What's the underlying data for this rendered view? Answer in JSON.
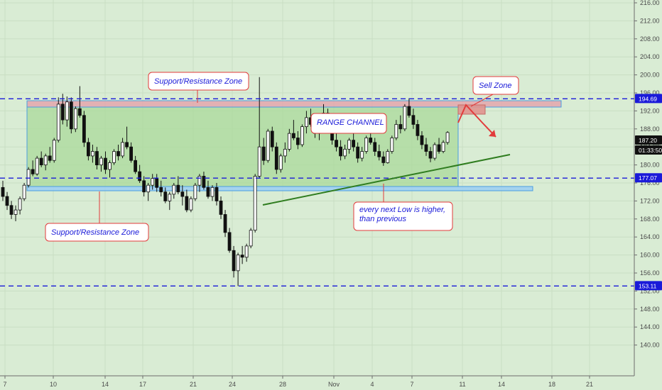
{
  "chart_data": {
    "type": "candlestick",
    "colors": {
      "background": "#d9ecd4",
      "up": "#ffffff",
      "down": "#111111",
      "level_line": "#1a1ad9",
      "annotation_text": "#1a1ad9",
      "annotation_border": "#e23b3b",
      "range_fill": "#a9d99b",
      "trendline": "#2f7d1f",
      "arrow": "#e23b3b"
    },
    "y_axis": {
      "ticks": [
        "216.00",
        "212.00",
        "208.00",
        "204.00",
        "200.00",
        "196.00",
        "192.00",
        "188.00",
        "184.00",
        "180.00",
        "176.00",
        "172.00",
        "168.00",
        "164.00",
        "160.00",
        "156.00",
        "152.00",
        "148.00",
        "144.00",
        "140.00"
      ],
      "range": [
        137.5,
        217
      ]
    },
    "x_axis": {
      "ticks": [
        "7",
        "10",
        "14",
        "17",
        "21",
        "24",
        "28",
        "Nov",
        "4",
        "7",
        "11",
        "14",
        "18",
        "21"
      ]
    },
    "price_tags": [
      {
        "label": "194.69",
        "value": 194.69,
        "color": "#1a1ad9"
      },
      {
        "label": "187.20",
        "value": 187.2,
        "color": "#111111"
      },
      {
        "label": "01:33:50",
        "value": 185.5,
        "color": "#111111"
      },
      {
        "label": "177.07",
        "value": 177.07,
        "color": "#1a1ad9"
      },
      {
        "label": "153.11",
        "value": 153.11,
        "color": "#1a1ad9"
      }
    ],
    "levels": [
      194.69,
      177.07,
      153.11
    ],
    "annotations": [
      {
        "text": "Support/Resistance Zone",
        "lines": [
          "Support/Resistance Zone"
        ]
      },
      {
        "text": "Sell Zone",
        "lines": [
          "Sell Zone"
        ]
      },
      {
        "text": "RANGE CHANNEL",
        "lines": [
          "RANGE CHANNEL"
        ]
      },
      {
        "text": "Support/Resistance Zone",
        "lines": [
          "Support/Resistance Zone"
        ]
      },
      {
        "text": "every next Low is higher, than previous",
        "lines": [
          "every next Low is higher,",
          "than previous"
        ]
      }
    ],
    "ohlc": [
      [
        175,
        176.5,
        172,
        173
      ],
      [
        173,
        174,
        170,
        171
      ],
      [
        171,
        172,
        168,
        169
      ],
      [
        169,
        171,
        167.5,
        170
      ],
      [
        170,
        173,
        169,
        172.5
      ],
      [
        172.5,
        176,
        172,
        175.5
      ],
      [
        175.5,
        179.5,
        175,
        179
      ],
      [
        179,
        181,
        177.5,
        178
      ],
      [
        178,
        182,
        177.6,
        181.5
      ],
      [
        181.5,
        183,
        179.5,
        180
      ],
      [
        180,
        182.5,
        178.8,
        182
      ],
      [
        182,
        184,
        180.5,
        181
      ],
      [
        181,
        186,
        180.5,
        185.5
      ],
      [
        185.5,
        195,
        185,
        193.5
      ],
      [
        193.5,
        195.8,
        189,
        190
      ],
      [
        190,
        195.2,
        188.5,
        194
      ],
      [
        194,
        195,
        187,
        188
      ],
      [
        188,
        193,
        187.3,
        192.5
      ],
      [
        192.5,
        197.5,
        190.5,
        191
      ],
      [
        191,
        192,
        184,
        185
      ],
      [
        185,
        186,
        181,
        182
      ],
      [
        182,
        184.5,
        180.5,
        183
      ],
      [
        183,
        184,
        179,
        180
      ],
      [
        180,
        182,
        178.5,
        181.5
      ],
      [
        181.5,
        183,
        178,
        179
      ],
      [
        179,
        181,
        177.2,
        180.5
      ],
      [
        180.5,
        183.5,
        180,
        183
      ],
      [
        183,
        184.5,
        181,
        182
      ],
      [
        182,
        186,
        181.5,
        185
      ],
      [
        185,
        188.5,
        183.5,
        184
      ],
      [
        184,
        185,
        180.5,
        181
      ],
      [
        181,
        182,
        178,
        178.5
      ],
      [
        178.5,
        180,
        176,
        176.5
      ],
      [
        176.5,
        177.5,
        173,
        174
      ],
      [
        174,
        176,
        172,
        175.5
      ],
      [
        175.5,
        178,
        174.5,
        177
      ],
      [
        177,
        178,
        174,
        175
      ],
      [
        175,
        176.5,
        173,
        174
      ],
      [
        174,
        175,
        171.5,
        172
      ],
      [
        172,
        174,
        170,
        173.5
      ],
      [
        173.5,
        176,
        172.5,
        175.5
      ],
      [
        175.5,
        177.5,
        173.5,
        174
      ],
      [
        174,
        175.5,
        171,
        173
      ],
      [
        173,
        174.5,
        169.5,
        170
      ],
      [
        170,
        173,
        169.5,
        172.5
      ],
      [
        172.5,
        176,
        172,
        175.5
      ],
      [
        175.5,
        178,
        174,
        177.5
      ],
      [
        177.5,
        178.5,
        174.5,
        175
      ],
      [
        175,
        176.5,
        172.5,
        173
      ],
      [
        173,
        175.5,
        172,
        175
      ],
      [
        175,
        176,
        171,
        172
      ],
      [
        172,
        173,
        168,
        169
      ],
      [
        169,
        170,
        164,
        165
      ],
      [
        165,
        166,
        160.5,
        161
      ],
      [
        161,
        162,
        155,
        156.5
      ],
      [
        156.5,
        160.5,
        153.1,
        160
      ],
      [
        160,
        162,
        158,
        159.5
      ],
      [
        159.5,
        162.5,
        158.5,
        162
      ],
      [
        162,
        166,
        161.5,
        165.5
      ],
      [
        165.5,
        178,
        165,
        177.5
      ],
      [
        177.5,
        199.5,
        177,
        184
      ],
      [
        184,
        186,
        180,
        181
      ],
      [
        181,
        188,
        180.5,
        187.5
      ],
      [
        187.5,
        188.5,
        183,
        184
      ],
      [
        184,
        185,
        178,
        179
      ],
      [
        179,
        182.5,
        178.3,
        182
      ],
      [
        182,
        185,
        180.5,
        183.5
      ],
      [
        183.5,
        188,
        183,
        187
      ],
      [
        187,
        190,
        185.5,
        186
      ],
      [
        186,
        187.5,
        183.5,
        184.5
      ],
      [
        184.5,
        189,
        184,
        188.5
      ],
      [
        188.5,
        192,
        187,
        190.5
      ],
      [
        190.5,
        192.5,
        188.5,
        189
      ],
      [
        189,
        190.5,
        186,
        187
      ],
      [
        187,
        190,
        185.5,
        189.5
      ],
      [
        189.5,
        193.5,
        189,
        191.5
      ],
      [
        191.5,
        192.5,
        187,
        188
      ],
      [
        188,
        189,
        184.5,
        185.5
      ],
      [
        185.5,
        187.5,
        183,
        184
      ],
      [
        184,
        185.5,
        181,
        182
      ],
      [
        182,
        184.5,
        181.3,
        183.5
      ],
      [
        183.5,
        186,
        182.5,
        185.5
      ],
      [
        185.5,
        187,
        183,
        184
      ],
      [
        184,
        185,
        180.5,
        181.5
      ],
      [
        181.5,
        184,
        180.8,
        183
      ],
      [
        183,
        186.5,
        182.5,
        186
      ],
      [
        186,
        188.5,
        184.5,
        185
      ],
      [
        185,
        186,
        182,
        183
      ],
      [
        183,
        184.5,
        181,
        181.8
      ],
      [
        181.8,
        183,
        179.8,
        180.5
      ],
      [
        180.5,
        183.5,
        180.3,
        183
      ],
      [
        183,
        186.5,
        182.5,
        186
      ],
      [
        186,
        190,
        185.5,
        189
      ],
      [
        189,
        191,
        187,
        188
      ],
      [
        188,
        193.5,
        187.5,
        193
      ],
      [
        193,
        194.8,
        190.5,
        191
      ],
      [
        191,
        192.5,
        188,
        189
      ],
      [
        189,
        190,
        185.5,
        186.5
      ],
      [
        186.5,
        187.5,
        183.5,
        184.5
      ],
      [
        184.5,
        186,
        182,
        183
      ],
      [
        183,
        184,
        180.6,
        181.5
      ],
      [
        181.5,
        185,
        181,
        184.5
      ],
      [
        184.5,
        186,
        182.5,
        183
      ],
      [
        183,
        185.5,
        182.6,
        185
      ],
      [
        185,
        187.5,
        184.5,
        187.2
      ]
    ]
  }
}
